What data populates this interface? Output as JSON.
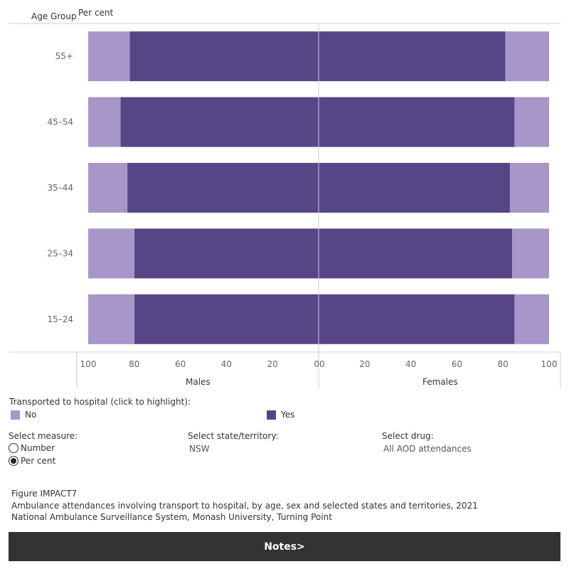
{
  "chart_data": {
    "type": "bar",
    "orientation": "horizontal-diverging",
    "y_axis_title": "Age Group",
    "x_axis_unit": "Per cent",
    "categories": [
      "55+",
      "45–54",
      "35–44",
      "25–34",
      "15–24"
    ],
    "panels": [
      {
        "name": "Males",
        "xlim": [
          100,
          0
        ],
        "ticks": [
          "100",
          "80",
          "60",
          "40",
          "20",
          "0"
        ],
        "series": [
          {
            "name": "Yes",
            "values": [
              82,
              86,
              83,
              80,
              80
            ]
          },
          {
            "name": "No",
            "values": [
              18,
              14,
              17,
              20,
              20
            ]
          }
        ]
      },
      {
        "name": "Females",
        "xlim": [
          0,
          100
        ],
        "ticks": [
          "0",
          "20",
          "40",
          "60",
          "80",
          "100"
        ],
        "series": [
          {
            "name": "Yes",
            "values": [
              81,
              85,
              83,
              84,
              85
            ]
          },
          {
            "name": "No",
            "values": [
              19,
              15,
              17,
              16,
              15
            ]
          }
        ]
      }
    ],
    "colors": {
      "Yes": "#574686",
      "No": "#a697c8"
    }
  },
  "legend": {
    "title": "Transported to hospital (click to highlight):",
    "items": [
      {
        "label": "No",
        "color": "#a697c8"
      },
      {
        "label": "Yes",
        "color": "#574686"
      }
    ]
  },
  "filters": {
    "measure": {
      "label": "Select measure:",
      "options": [
        "Number",
        "Per cent"
      ],
      "selected": "Per cent"
    },
    "state": {
      "label": "Select state/territory:",
      "value": "NSW"
    },
    "drug": {
      "label": "Select drug:",
      "value": "All AOD attendances"
    }
  },
  "caption": {
    "figure_id": "Figure IMPACT7",
    "title": "Ambulance attendances involving transport to hospital, by age, sex and selected states and territories, 2021",
    "source": "National Ambulance Surveillance System, Monash University, Turning Point"
  },
  "notes_button": "Notes>"
}
